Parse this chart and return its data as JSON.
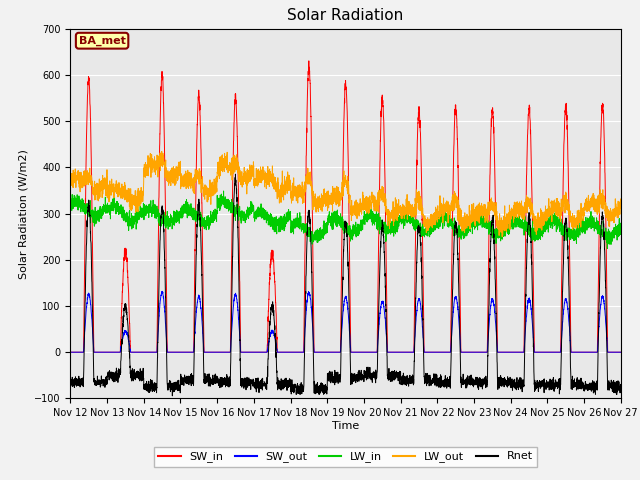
{
  "title": "Solar Radiation",
  "ylabel": "Solar Radiation (W/m2)",
  "xlabel": "Time",
  "ylim": [
    -100,
    700
  ],
  "yticks": [
    -100,
    0,
    100,
    200,
    300,
    400,
    500,
    600,
    700
  ],
  "n_days": 15,
  "pts_per_day": 288,
  "colors": {
    "SW_in": "#FF0000",
    "SW_out": "#0000FF",
    "LW_in": "#00CC00",
    "LW_out": "#FFA500",
    "Rnet": "#000000"
  },
  "station_label": "BA_met",
  "station_label_bg": "#FFFFAA",
  "station_label_border": "#880000",
  "bg_color": "#E8E8E8",
  "grid_color": "#FFFFFF",
  "linewidth": 0.7,
  "sw_in_peaks": [
    590,
    220,
    600,
    555,
    550,
    215,
    620,
    580,
    550,
    520,
    530,
    525,
    530,
    530,
    535
  ],
  "sw_out_peaks": [
    125,
    45,
    130,
    120,
    125,
    45,
    130,
    120,
    110,
    115,
    120,
    115,
    115,
    115,
    120
  ],
  "lw_in_base": [
    310,
    300,
    295,
    295,
    310,
    290,
    265,
    275,
    280,
    275,
    275,
    270,
    270,
    270,
    265
  ],
  "lw_out_base": [
    365,
    340,
    390,
    360,
    390,
    365,
    335,
    320,
    310,
    295,
    295,
    290,
    295,
    300,
    310
  ],
  "lw_out_amp": [
    20,
    10,
    30,
    25,
    30,
    15,
    50,
    60,
    40,
    40,
    40,
    35,
    35,
    35,
    30
  ],
  "rnet_peaks": [
    320,
    100,
    315,
    320,
    375,
    100,
    305,
    280,
    270,
    275,
    280,
    285,
    295,
    290,
    295
  ],
  "rnet_night": [
    -65,
    -50,
    -75,
    -60,
    -65,
    -70,
    -80,
    -55,
    -50,
    -60,
    -65,
    -65,
    -70,
    -70,
    -75
  ]
}
